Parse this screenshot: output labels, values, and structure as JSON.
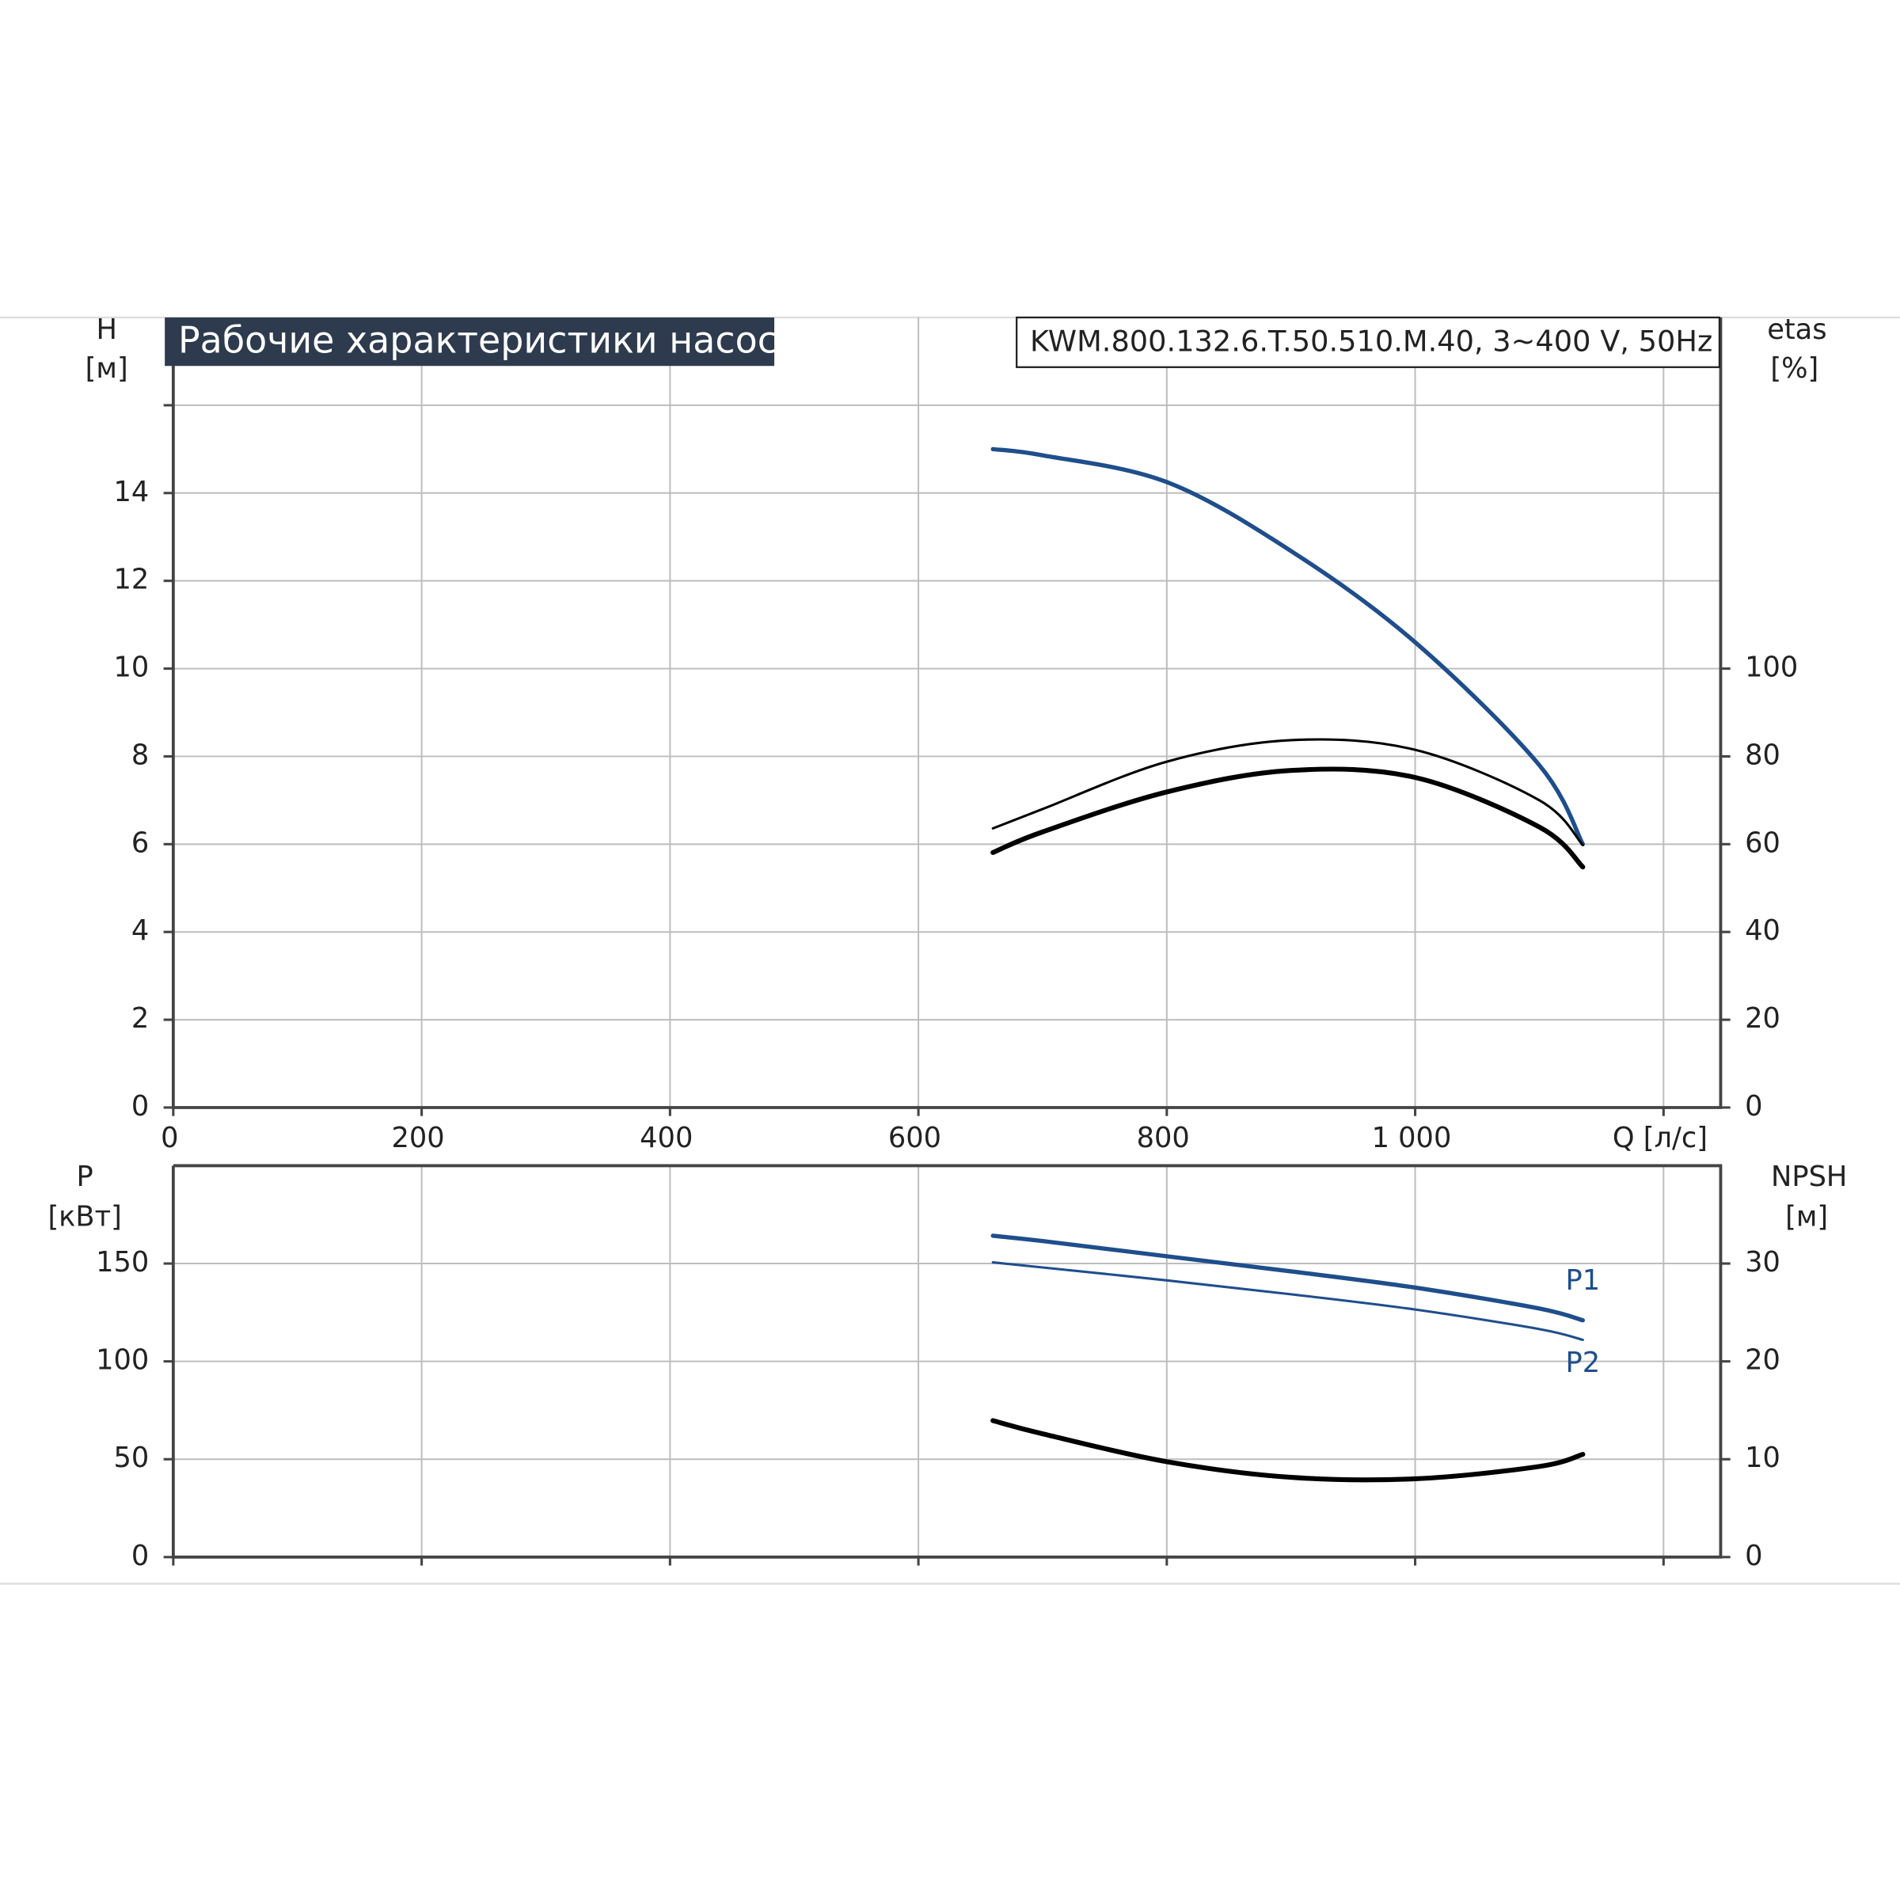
{
  "chart_data": [
    {
      "type": "line",
      "title": "Рабочие характеристики насоса",
      "subtitle": "KWM.800.132.6.T.50.510.M.40, 3~400 V, 50Hz",
      "x_label": "Q [л/с]",
      "y_label": [
        "H",
        "[м]"
      ],
      "y2_label": [
        "etas",
        "[%]"
      ],
      "xlim": [
        0,
        1246
      ],
      "xticks": [
        0,
        200,
        400,
        600,
        800,
        {
          "value": 1000,
          "label": "1 000"
        },
        {
          "value": 1200,
          "label": null
        }
      ],
      "ylim": [
        0,
        18
      ],
      "yticks": [
        0,
        2,
        4,
        6,
        8,
        10,
        12,
        14,
        {
          "value": 16,
          "label": null
        }
      ],
      "y2lim": [
        0,
        180
      ],
      "y2ticks": [
        0,
        20,
        40,
        60,
        80,
        100
      ],
      "grid": true,
      "x": [
        660,
        700,
        800,
        900,
        1000,
        1100,
        1135
      ],
      "series": [
        {
          "color": "#1f4e8c",
          "values": [
            15.0,
            14.86,
            14.25,
            12.68,
            10.6,
            7.8,
            6.0
          ]
        },
        {
          "color": "#000000",
          "axis": "y2",
          "values": [
            63.6,
            68.0,
            78.8,
            83.7,
            81.5,
            70.0,
            59.8
          ]
        },
        {
          "color": "#000000",
          "axis": "y2",
          "values": [
            58.1,
            62.8,
            71.9,
            76.8,
            75.2,
            63.9,
            54.8
          ]
        }
      ]
    },
    {
      "type": "line",
      "y_label": [
        "P",
        "[кВт]"
      ],
      "y2_label": [
        "NPSH",
        "[м]"
      ],
      "xlim": [
        0,
        1246
      ],
      "ylim": [
        0,
        200
      ],
      "yticks": [
        0,
        50,
        100,
        150
      ],
      "y2lim": [
        0,
        40
      ],
      "y2ticks": [
        0,
        10,
        20,
        30
      ],
      "grid": true,
      "x": [
        660,
        700,
        800,
        900,
        1000,
        1100,
        1135
      ],
      "series": [
        {
          "name": "P1",
          "color": "#1f4e8c",
          "values": [
            164.2,
            161.5,
            153.7,
            146.0,
            137.7,
            127.0,
            121.0
          ]
        },
        {
          "name": "P2",
          "color": "#1f4e8c",
          "values": [
            150.6,
            148.0,
            141.4,
            134.3,
            126.5,
            116.5,
            111.0
          ]
        },
        {
          "color": "#000000",
          "axis": "y2",
          "values": [
            13.95,
            12.6,
            9.75,
            8.15,
            8.0,
            9.26,
            10.5
          ]
        }
      ]
    }
  ]
}
